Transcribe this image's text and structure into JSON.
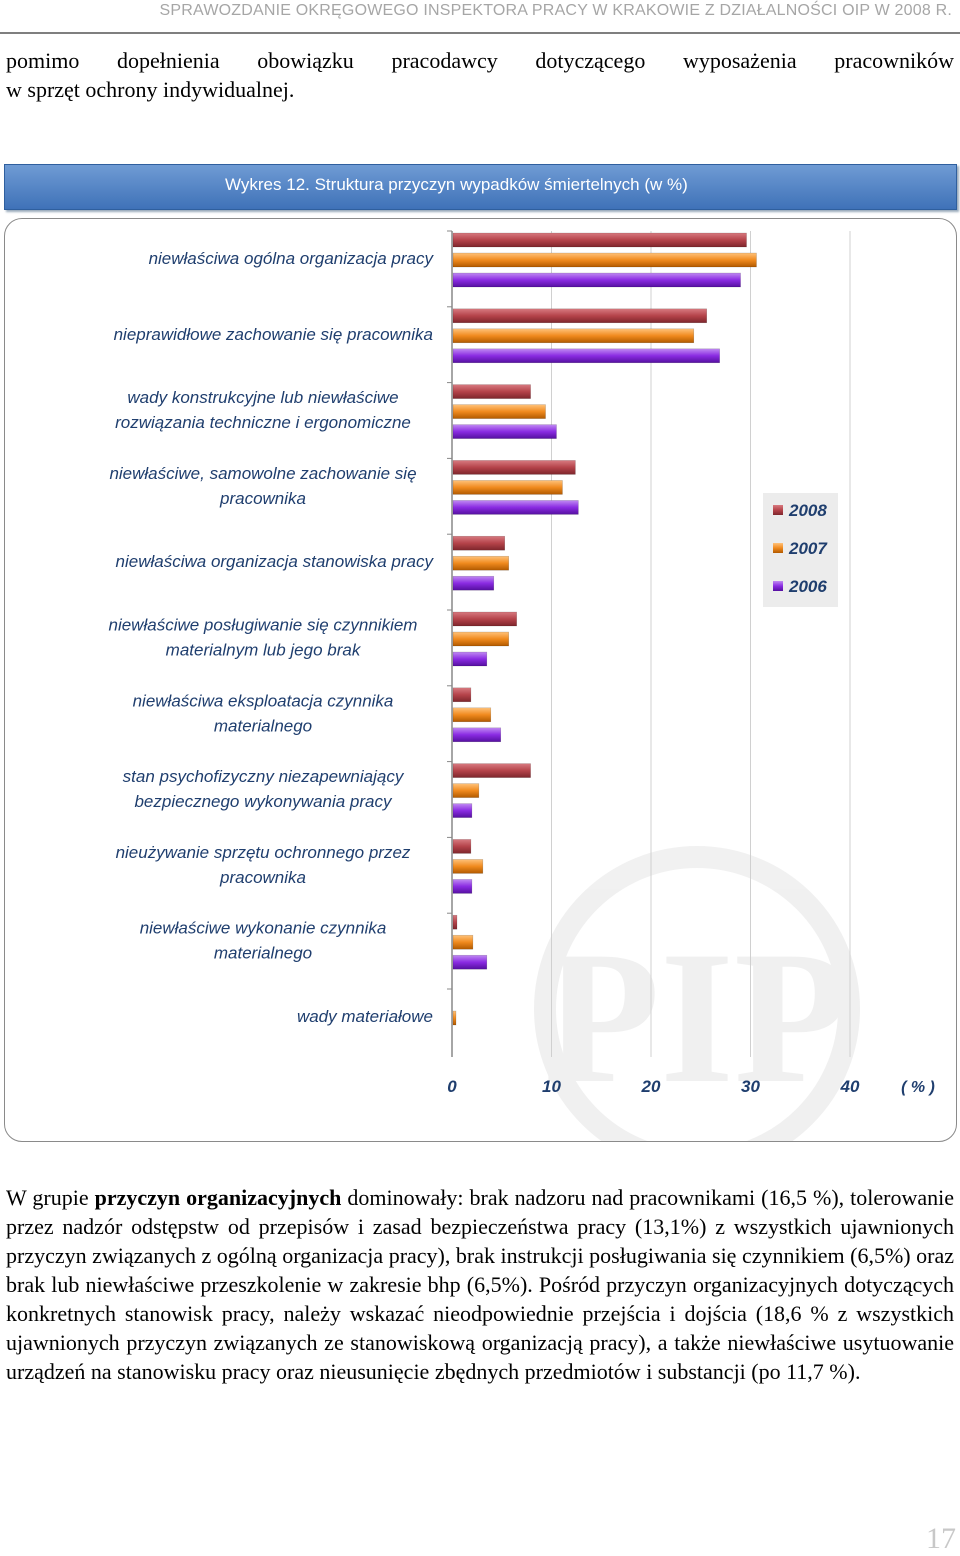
{
  "header": {
    "running_title": "SPRAWOZDANIE OKRĘGOWEGO INSPEKTORA PRACY W KRAKOWIE Z DZIAŁALNOŚCI OIP W 2008 R."
  },
  "intro": {
    "line1": "pomimo dopełnienia obowiązku pracodawcy dotyczącego wyposażenia pracowników",
    "line2": "w sprzęt ochrony indywidualnej."
  },
  "chart_data": {
    "type": "bar",
    "orientation": "horizontal",
    "title": "Wykres 12.  Struktura przyczyn wypadków śmiertelnych   (w %)",
    "categories": [
      [
        "niewłaściwa ogólna organizacja pracy"
      ],
      [
        "nieprawidłowe zachowanie się pracownika"
      ],
      [
        "wady konstrukcyjne lub niewłaściwe",
        "rozwiązania techniczne i ergonomiczne"
      ],
      [
        "niewłaściwe, samowolne zachowanie się",
        "pracownika"
      ],
      [
        "niewłaściwa organizacja stanowiska pracy"
      ],
      [
        "niewłaściwe posługiwanie się czynnikiem",
        "materialnym lub jego brak"
      ],
      [
        "niewłaściwa eksploatacja czynnika",
        "materialnego"
      ],
      [
        "stan psychofizyczny niezapewniający",
        "bezpiecznego wykonywania pracy"
      ],
      [
        "nieużywanie sprzętu ochronnego przez",
        "pracownika"
      ],
      [
        "niewłaściwe wykonanie czynnika",
        "materialnego"
      ],
      [
        "wady materiałowe"
      ]
    ],
    "series": [
      {
        "name": "2008",
        "color": "#b5434a",
        "values": [
          29.5,
          25.5,
          7.8,
          12.3,
          5.2,
          6.4,
          1.8,
          7.8,
          1.8,
          0.4,
          0
        ]
      },
      {
        "name": "2007",
        "color": "#f08a1e",
        "values": [
          30.5,
          24.2,
          9.3,
          11.0,
          5.6,
          5.6,
          3.8,
          2.6,
          3.0,
          2.0,
          0.3
        ]
      },
      {
        "name": "2006",
        "color": "#8a2be2",
        "values": [
          28.9,
          26.8,
          10.4,
          12.6,
          4.1,
          3.4,
          4.8,
          1.9,
          1.9,
          3.4,
          0
        ]
      }
    ],
    "x_ticks": [
      "0",
      "10",
      "20",
      "30",
      "40"
    ],
    "x_unit": "( % )",
    "xlim": [
      0,
      40
    ],
    "grid": true,
    "legend": "right",
    "watermark": "PIP"
  },
  "body": {
    "p_start": "W grupie ",
    "p_bold": "przyczyn organizacyjnych",
    "p_rest": " dominowały: brak nadzoru nad pracownikami (16,5 %), tolerowanie przez nadzór odstępstw od przepisów i zasad bezpieczeństwa pracy (13,1%) z wszystkich ujawnionych przyczyn związanych z ogólną organizacja pracy), brak instrukcji posługiwania się czynnikiem (6,5%) oraz brak lub niewłaściwe przeszkolenie w zakresie bhp (6,5%). Pośród przyczyn organizacyjnych dotyczących konkretnych stanowisk pracy, należy wskazać nieodpowiednie przejścia i dojścia (18,6 % z wszystkich ujawnionych przyczyn związanych ze stanowiskową organizacją pracy), a także niewłaściwe usytuowanie urządzeń na stanowisku pracy oraz nieusunięcie zbędnych przedmiotów i substancji (po 11,7 %)."
  },
  "footer": {
    "page_number": "17"
  }
}
